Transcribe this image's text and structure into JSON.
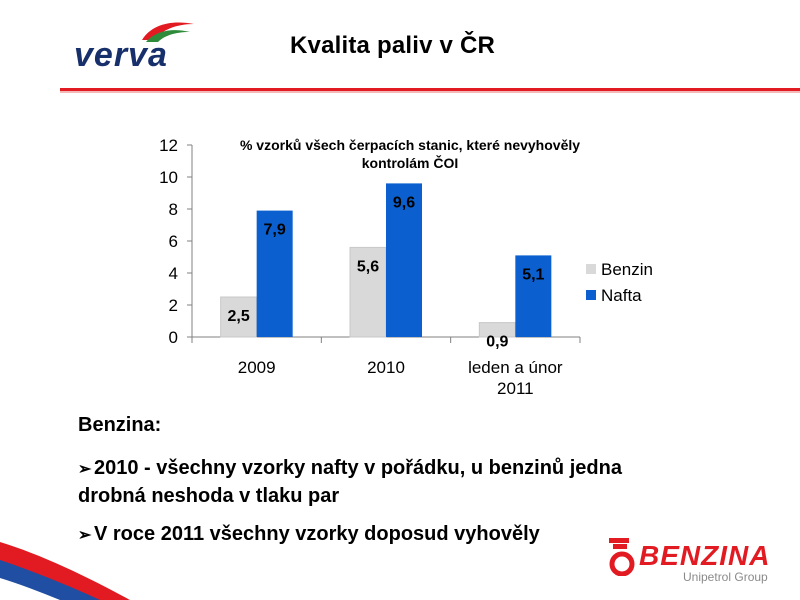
{
  "header": {
    "logo_text": "verva",
    "title": "Kvalita paliv v ČR"
  },
  "chart_note": {
    "line1": "% vzorků všech čerpacích stanic, které nevyhověly",
    "line2": "kontrolám ČOI"
  },
  "chart_data": {
    "type": "bar",
    "categories": [
      "2009",
      "2010",
      "leden a únor 2011"
    ],
    "category_lines": [
      [
        "2009"
      ],
      [
        "2010"
      ],
      [
        "leden a únor",
        "2011"
      ]
    ],
    "series": [
      {
        "name": "Benzin",
        "values": [
          2.5,
          5.6,
          0.9
        ],
        "labels": [
          "2,5",
          "5,6",
          "0,9"
        ],
        "color": "#d9d9d9"
      },
      {
        "name": "Nafta",
        "values": [
          7.9,
          9.6,
          5.1
        ],
        "labels": [
          "7,9",
          "9,6",
          "5,1"
        ],
        "color": "#0b5fce"
      }
    ],
    "ylim": [
      0,
      12
    ],
    "yticks": [
      0,
      2,
      4,
      6,
      8,
      10,
      12
    ],
    "legend_position": "right",
    "grid": false
  },
  "bullets": {
    "heading": "Benzina:",
    "marker": "➢",
    "items": [
      {
        "lines": [
          "2010 - všechny vzorky nafty v pořádku, u benzinů jedna",
          "drobná neshoda v tlaku par"
        ]
      },
      {
        "lines": [
          "V roce 2011 všechny vzorky doposud vyhověly"
        ]
      }
    ]
  },
  "footer": {
    "logo_name": "BENZINA",
    "logo_group": "Unipetrol Group"
  },
  "colors": {
    "brand_red": "#e21b23",
    "verva_blue": "#17306b",
    "nafta_blue": "#0b5fce",
    "benzin_gray": "#d9d9d9"
  }
}
